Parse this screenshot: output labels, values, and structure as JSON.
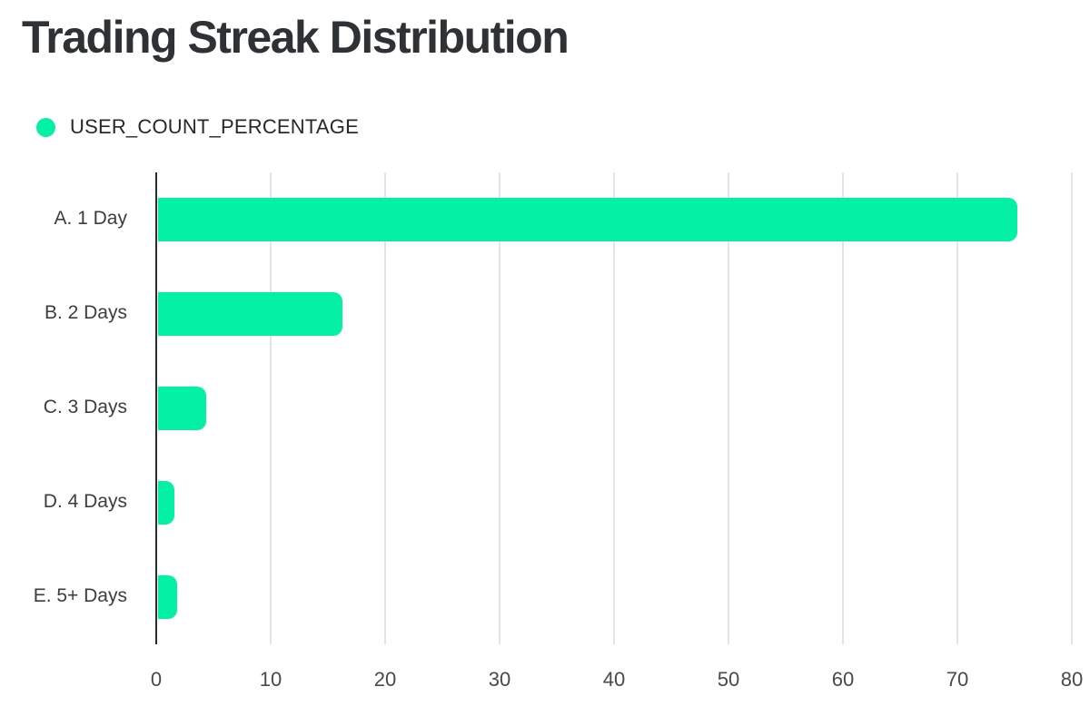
{
  "title": "Trading Streak Distribution",
  "legend": {
    "label": "USER_COUNT_PERCENTAGE",
    "swatch_color": "#04f0a3"
  },
  "chart_data": {
    "type": "bar",
    "orientation": "horizontal",
    "title": "Trading Streak Distribution",
    "series_name": "USER_COUNT_PERCENTAGE",
    "categories": [
      "A. 1 Day",
      "B. 2 Days",
      "C. 3 Days",
      "D. 4 Days",
      "E. 5+ Days"
    ],
    "values": [
      75.2,
      16.3,
      4.4,
      1.6,
      1.8
    ],
    "xlabel": "",
    "ylabel": "",
    "xlim": [
      0,
      80
    ],
    "x_ticks": [
      0,
      10,
      20,
      30,
      40,
      50,
      60,
      70,
      80
    ],
    "grid": true,
    "legend_position": "top-left",
    "bar_color": "#04f0a3"
  },
  "colors": {
    "accent_green": "#04f0a3",
    "title_text": "#2f3235",
    "axis_line": "#2a2c2e",
    "gridline": "#e3e4e5",
    "tick_text": "#47494b",
    "category_text": "#3b3d3f",
    "background": "#ffffff"
  }
}
